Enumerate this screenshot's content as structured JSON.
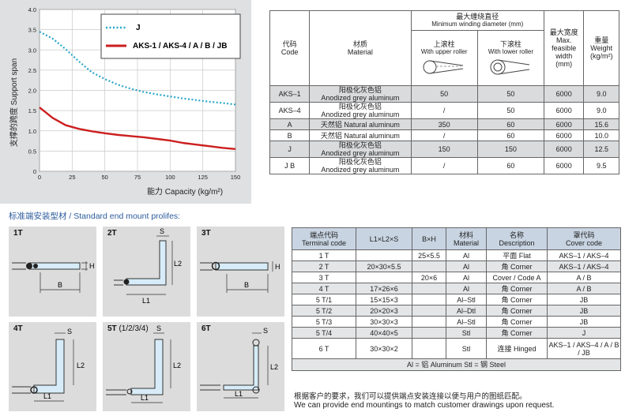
{
  "chart_data": {
    "type": "line",
    "xlabel": "能力 Capacity (kg/m²)",
    "ylabel": "支撑的跨度 Support span",
    "xlim": [
      0,
      150
    ],
    "ylim": [
      0,
      4.0
    ],
    "xticks": [
      "0",
      "25",
      "50",
      "75",
      "100",
      "125",
      "150"
    ],
    "yticks": [
      "0",
      "0.5",
      "1.0",
      "1.5",
      "2.0",
      "2.5",
      "3.0",
      "3.5",
      "4.0"
    ],
    "grid": true,
    "legend_position": "top-right",
    "series": [
      {
        "name": "J",
        "color": "#2aa6c8",
        "style": "dotted",
        "x": [
          0,
          10,
          20,
          30,
          40,
          50,
          60,
          70,
          80,
          90,
          100,
          110,
          120,
          130,
          140,
          150
        ],
        "y": [
          3.45,
          3.28,
          3.02,
          2.72,
          2.45,
          2.28,
          2.14,
          2.04,
          1.96,
          1.9,
          1.85,
          1.8,
          1.76,
          1.72,
          1.69,
          1.65
        ]
      },
      {
        "name": "AKS-1 / AKS-4 / A / B / JB",
        "color": "#cc1f1f",
        "style": "solid",
        "x": [
          0,
          10,
          20,
          30,
          40,
          50,
          60,
          70,
          80,
          90,
          100,
          110,
          120,
          130,
          140,
          150
        ],
        "y": [
          1.58,
          1.32,
          1.14,
          1.05,
          0.99,
          0.94,
          0.9,
          0.87,
          0.84,
          0.8,
          0.76,
          0.7,
          0.66,
          0.62,
          0.58,
          0.55
        ]
      }
    ]
  },
  "spec_table": {
    "headers": {
      "code_zh": "代码",
      "code_en": "Code",
      "material_zh": "材质",
      "material_en": "Material",
      "min_zh": "最大缠绕直径",
      "min_en": "Minimum winding diameter (mm)",
      "upper_zh": "上滚柱",
      "upper_en": "With upper roller",
      "lower_zh": "下滚柱",
      "lower_en": "With lower roller",
      "width_zh": "最大宽度",
      "width_en1": "Max.",
      "width_en2": "feasible",
      "width_en3": "width",
      "width_en4": "(mm)",
      "weight_zh": "重量",
      "weight_en1": "Weight",
      "weight_en2": "(kg/m²)"
    },
    "rows": [
      {
        "code": "AKS–1",
        "mat_zh": "阳极化灰色铝",
        "mat_en": "Anodized grey aluminum",
        "upper": "50",
        "lower": "50",
        "width": "6000",
        "weight": "9.0"
      },
      {
        "code": "AKS–4",
        "mat_zh": "阳极化灰色铝",
        "mat_en": "Anodized grey aluminum",
        "upper": "/",
        "lower": "50",
        "width": "6000",
        "weight": "9.0"
      },
      {
        "code": "A",
        "mat_zh": "天然铝 Natural aluminum",
        "mat_en": "",
        "upper": "350",
        "lower": "60",
        "width": "6000",
        "weight": "15.6"
      },
      {
        "code": "B",
        "mat_zh": "天然铝 Natural aluminum",
        "mat_en": "",
        "upper": "/",
        "lower": "60",
        "width": "6000",
        "weight": "10.0"
      },
      {
        "code": "J",
        "mat_zh": "阳极化灰色铝",
        "mat_en": "Anodized grey aluminum",
        "upper": "150",
        "lower": "150",
        "width": "6000",
        "weight": "12.5"
      },
      {
        "code": "J B",
        "mat_zh": "阳极化灰色铝",
        "mat_en": "Anodized grey aluminum",
        "upper": "/",
        "lower": "60",
        "width": "6000",
        "weight": "9.5"
      }
    ]
  },
  "profiles": {
    "title": "标准端安装型材 / Standard end mount prolifes:",
    "panels": [
      {
        "label": "1T",
        "dims": [
          "H",
          "B"
        ]
      },
      {
        "label": "2T",
        "dims": [
          "S",
          "L2",
          "L1"
        ]
      },
      {
        "label": "3T",
        "dims": [
          "H",
          "B"
        ]
      },
      {
        "label": "4T",
        "dims": [
          "S",
          "L2",
          "L1"
        ]
      },
      {
        "label": "5T",
        "label_extra": "(1/2/3/4)",
        "dims": [
          "S",
          "L2",
          "L1"
        ]
      },
      {
        "label": "6T",
        "dims": [
          "S",
          "L2",
          "L1"
        ]
      }
    ]
  },
  "mount_table": {
    "headers": {
      "term_zh": "端点代码",
      "term_en": "Terminal code",
      "lls": "L1×L2×S",
      "bh": "B×H",
      "mat_zh": "材料",
      "mat_en": "Material",
      "name_zh": "名称",
      "name_en": "Description",
      "cover_zh": "罩代码",
      "cover_en": "Cover code"
    },
    "rows": [
      {
        "code": "1 T",
        "lls": "",
        "bh": "25×5.5",
        "mat": "Al",
        "desc": "平面 Flat",
        "cover": "AKS–1 / AKS–4"
      },
      {
        "code": "2 T",
        "lls": "20×30×5.5",
        "bh": "",
        "mat": "Al",
        "desc": "角 Corner",
        "cover": "AKS–1 / AKS–4"
      },
      {
        "code": "3 T",
        "lls": "",
        "bh": "20×6",
        "mat": "Al",
        "desc": "Cover / Code A",
        "cover": "A / B"
      },
      {
        "code": "4 T",
        "lls": "17×26×6",
        "bh": "",
        "mat": "Al",
        "desc": "角 Corner",
        "cover": "A / B"
      },
      {
        "code": "5 T/1",
        "lls": "15×15×3",
        "bh": "",
        "mat": "Al–Stl",
        "desc": "角 Corner",
        "cover": "JB"
      },
      {
        "code": "5 T/2",
        "lls": "20×20×3",
        "bh": "",
        "mat": "Al–Dtl",
        "desc": "角 Corner",
        "cover": "JB"
      },
      {
        "code": "5 T/3",
        "lls": "30×30×3",
        "bh": "",
        "mat": "Al–Stl",
        "desc": "角 Corner",
        "cover": "JB"
      },
      {
        "code": "5 T/4",
        "lls": "40×40×5",
        "bh": "",
        "mat": "Stl",
        "desc": "角 Corner",
        "cover": "J"
      },
      {
        "code": "6 T",
        "lls": "30×30×2",
        "bh": "",
        "mat": "Stl",
        "desc": "连接 Hinged",
        "cover": "AKS–1 / AKS–4 / A / B / JB"
      }
    ],
    "note": "Al = 铝 Aluminum Stl = 钢 Steel"
  },
  "footer": {
    "zh": "根据客户的要求，我们可以提供端点安装连接以便与用户的图纸匹配。",
    "en": "We can provide end mountings to match customer drawings upon request."
  }
}
